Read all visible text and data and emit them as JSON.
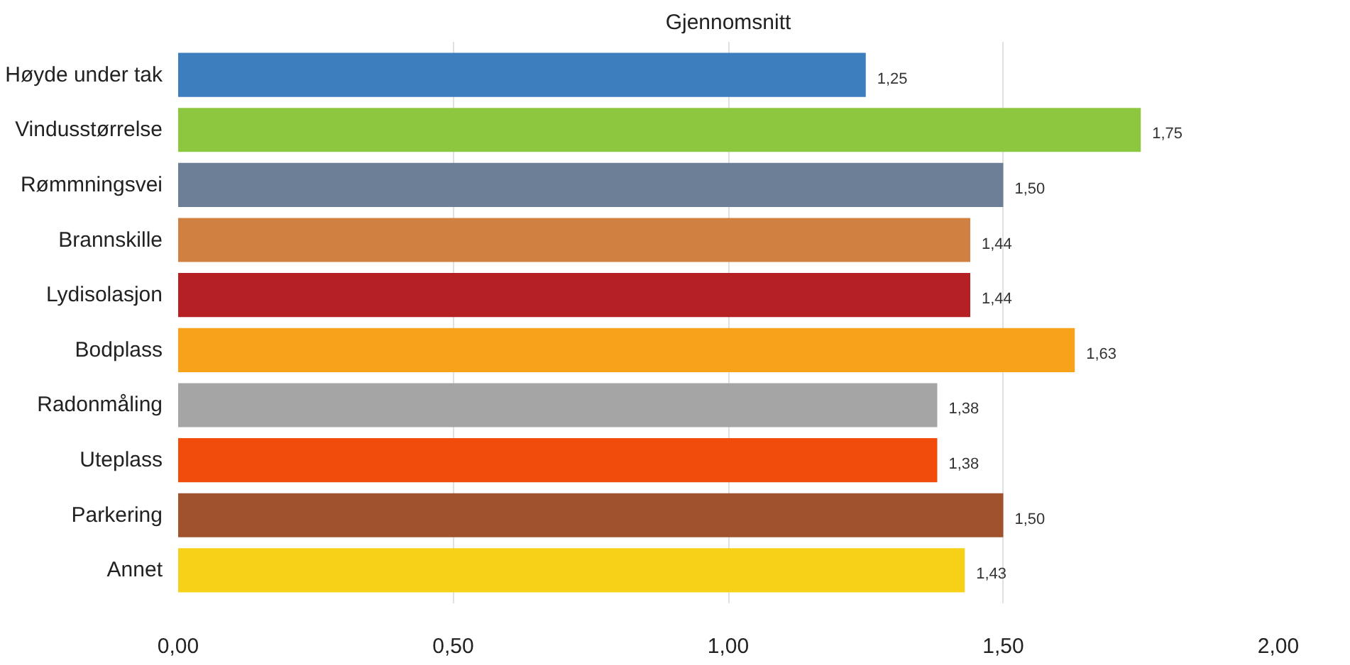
{
  "chart_data": {
    "type": "bar",
    "orientation": "horizontal",
    "title": "Gjennomsnitt",
    "categories": [
      "Høyde under tak",
      "Vindusstørrelse",
      "Rømmningsvei",
      "Brannskille",
      "Lydisolasjon",
      "Bodplass",
      "Radonmåling",
      "Uteplass",
      "Parkering",
      "Annet"
    ],
    "values": [
      1.25,
      1.75,
      1.5,
      1.44,
      1.44,
      1.63,
      1.38,
      1.38,
      1.5,
      1.43
    ],
    "colors": [
      "#3d7ebf",
      "#8dc63f",
      "#6d7f96",
      "#d08040",
      "#b52025",
      "#f7a21a",
      "#a5a5a5",
      "#f24c0c",
      "#a0522d",
      "#f7d117"
    ],
    "value_labels": [
      "1,25",
      "1,75",
      "1,50",
      "1,44",
      "1,44",
      "1,63",
      "1,38",
      "1,38",
      "1,50",
      "1,43"
    ],
    "xlim": [
      0,
      2
    ],
    "xticks": [
      {
        "value": 0,
        "label": "0,00"
      },
      {
        "value": 0.5,
        "label": "0,50"
      },
      {
        "value": 1,
        "label": "1,00"
      },
      {
        "value": 1.5,
        "label": "1,50"
      },
      {
        "value": 2,
        "label": "2,00"
      }
    ],
    "grid": "x"
  }
}
